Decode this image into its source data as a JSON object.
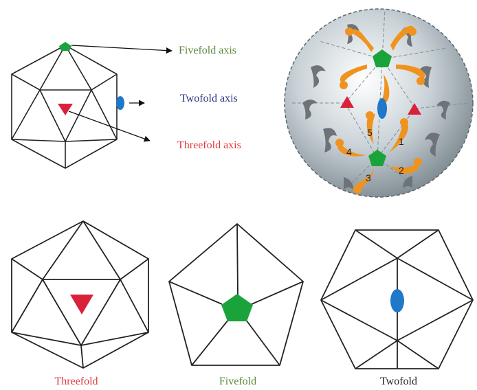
{
  "labels": {
    "fivefold_axis": "Fivefold axis",
    "twofold_axis": "Twofold axis",
    "threefold_axis": "Threefold axis",
    "threefold": "Threefold",
    "fivefold": "Fivefold",
    "twofold": "Twofold"
  },
  "subunit_numbers": [
    "1",
    "2",
    "3",
    "4",
    "5"
  ],
  "icons": {
    "fivefold": "green-pentagon-icon",
    "twofold": "blue-ellipse-icon",
    "threefold": "red-triangle-icon"
  },
  "colors": {
    "fivefold": "#1aa33a",
    "twofold": "#1f78c8",
    "threefold": "#d9213a",
    "fivefold_label": "#5c8a3c",
    "twofold_label": "#2c3580",
    "threefold_label": "#e03a3e",
    "twofold_caption": "#222222",
    "subunit_orange": "#f0931e",
    "subunit_gray": "#6d7378"
  }
}
